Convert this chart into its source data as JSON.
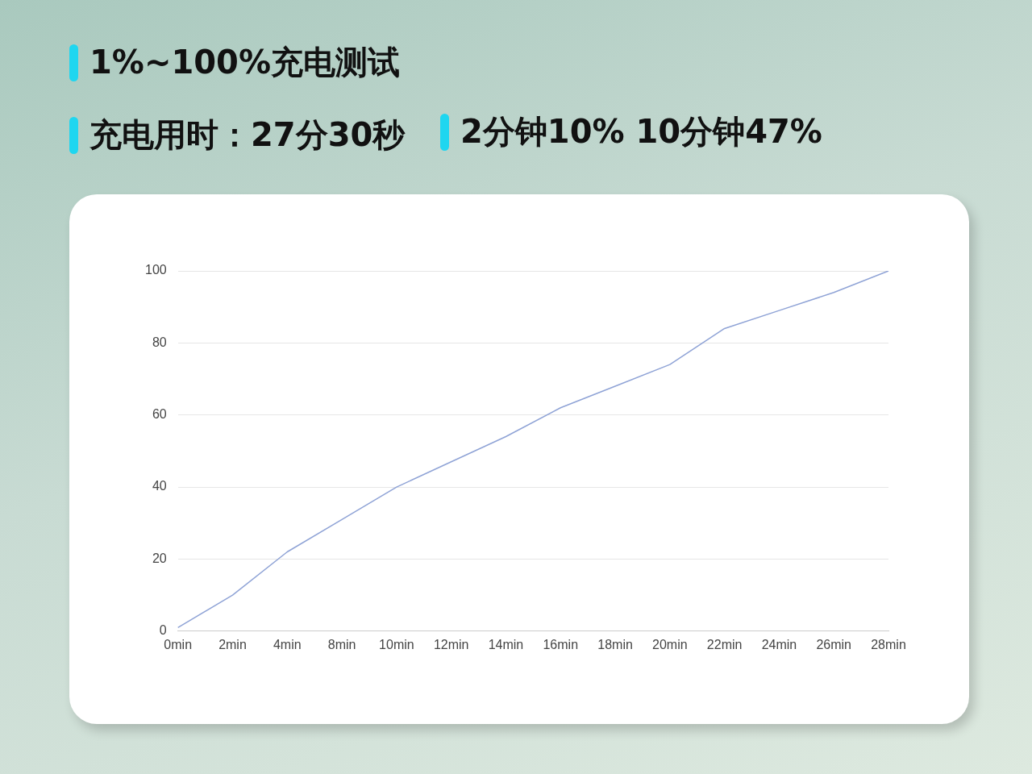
{
  "chart_data": {
    "type": "line",
    "title": "1%~100%充电测试",
    "subtitle": "充电用时：27分30秒",
    "annotations": [
      "2分钟10% 10分钟47%"
    ],
    "categories": [
      "0min",
      "2min",
      "4min",
      "8min",
      "10min",
      "12min",
      "14min",
      "16min",
      "18min",
      "20min",
      "22min",
      "24min",
      "26min",
      "28min"
    ],
    "series": [
      {
        "color": "#8fa3d6",
        "values": [
          1,
          10,
          22,
          31,
          40,
          47,
          54,
          62,
          68,
          74,
          84,
          89,
          94,
          100
        ]
      }
    ],
    "ylim": [
      0,
      100
    ],
    "yticks": [
      0,
      20,
      40,
      60,
      80,
      100
    ],
    "grid": "y",
    "legend": false,
    "marker": "none",
    "line_style": "solid"
  }
}
